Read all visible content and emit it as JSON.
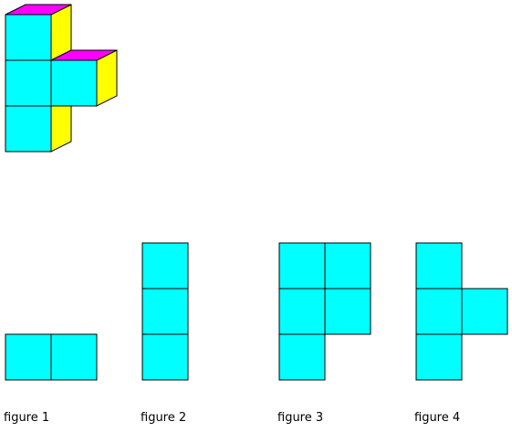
{
  "colors": {
    "front": "#00ffff",
    "side": "#ffff00",
    "top": "#ff00ff",
    "stroke": "#000000",
    "background": "#ffffff"
  },
  "solid": {
    "cubes": [
      [
        0,
        0
      ],
      [
        0,
        1
      ],
      [
        1,
        1
      ],
      [
        0,
        2
      ]
    ]
  },
  "figures": [
    {
      "label": "figure 1",
      "cells": [
        [
          0,
          0
        ],
        [
          1,
          0
        ]
      ]
    },
    {
      "label": "figure 2",
      "cells": [
        [
          0,
          0
        ],
        [
          0,
          1
        ],
        [
          0,
          2
        ]
      ]
    },
    {
      "label": "figure 3",
      "cells": [
        [
          0,
          0
        ],
        [
          1,
          0
        ],
        [
          0,
          1
        ],
        [
          1,
          1
        ],
        [
          0,
          2
        ]
      ]
    },
    {
      "label": "figure 4",
      "cells": [
        [
          0,
          0
        ],
        [
          0,
          1
        ],
        [
          1,
          1
        ],
        [
          0,
          2
        ]
      ]
    }
  ]
}
